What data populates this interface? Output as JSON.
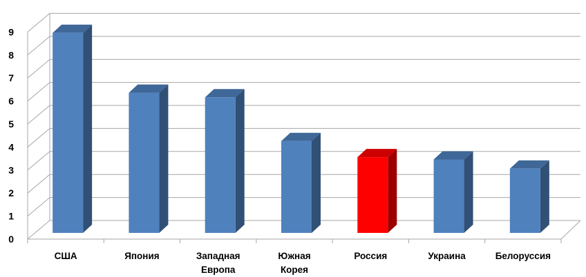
{
  "chart_data": {
    "type": "bar",
    "title": "",
    "xlabel": "",
    "ylabel": "",
    "categories": [
      [
        "США"
      ],
      [
        "Япония"
      ],
      [
        "Западная",
        "Европа"
      ],
      [
        "Южная",
        "Корея"
      ],
      [
        "Россия"
      ],
      [
        "Украина"
      ],
      [
        "Белоруссия"
      ]
    ],
    "values": [
      8.9,
      6.3,
      6.1,
      4.2,
      3.5,
      3.4,
      3.0
    ],
    "ylim": [
      0,
      9
    ],
    "yticks": [
      0,
      1,
      2,
      3,
      4,
      5,
      6,
      7,
      8,
      9
    ],
    "grid": true,
    "legend": "none",
    "style": "3d-column",
    "colors": {
      "default": "#4f81bd",
      "highlight": "#ff0000",
      "highlight_index": 4,
      "grid": "#a6a6a6",
      "axis": "#a6a6a6"
    }
  }
}
